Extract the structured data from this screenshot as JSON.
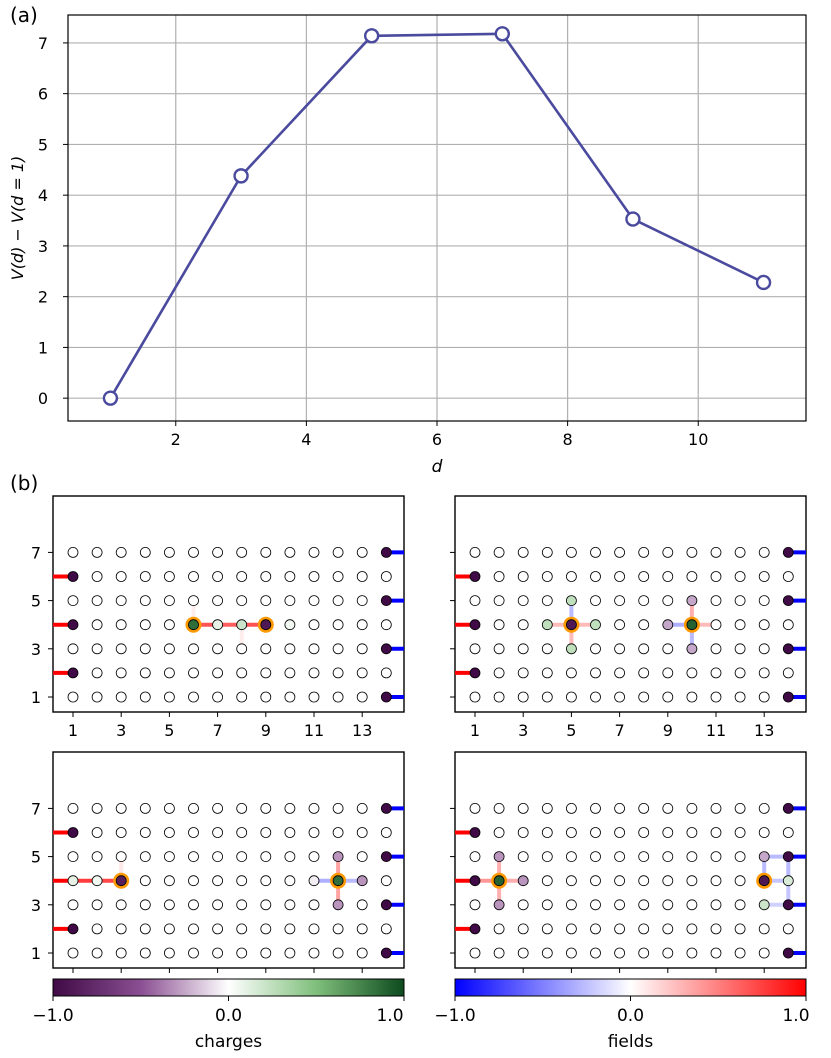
{
  "figure": {
    "panel_a_label": "(a)",
    "panel_b_label": "(b)"
  },
  "chart_data": [
    {
      "type": "line",
      "panel": "(a)",
      "xlabel": "d",
      "ylabel": "V(d) − V(d = 1)",
      "x": [
        1,
        3,
        5,
        7,
        9,
        11
      ],
      "series": [
        {
          "values": [
            0.0,
            4.38,
            7.14,
            7.18,
            3.53,
            2.28
          ],
          "color": "#4a4a9e",
          "marker": "open-circle"
        }
      ],
      "xlim": [
        0.35,
        11.65
      ],
      "ylim": [
        -0.45,
        7.55
      ],
      "xticks": [
        2,
        4,
        6,
        8,
        10
      ],
      "yticks": [
        0,
        1,
        2,
        3,
        4,
        5,
        6,
        7
      ],
      "grid": true
    },
    {
      "type": "heatmap",
      "panel": "(b)",
      "description_grid": "14 x 7 lattice, sites colored by charge, links colored by field",
      "xticks": [
        1,
        3,
        5,
        7,
        9,
        11,
        13
      ],
      "yticks": [
        1,
        3,
        5,
        7
      ],
      "boundary_fields": {
        "left": [
          {
            "y": 6,
            "field": 1.0
          },
          {
            "y": 4,
            "field": 1.0
          },
          {
            "y": 2,
            "field": 1.0
          }
        ],
        "right": [
          {
            "y": 7,
            "field": -1.0
          },
          {
            "y": 5,
            "field": -1.0
          },
          {
            "y": 3,
            "field": -1.0
          },
          {
            "y": 1,
            "field": -1.0
          }
        ]
      },
      "panels": [
        {
          "sites": [
            {
              "x": 6,
              "y": 4,
              "charge": 0.85,
              "probe": true
            },
            {
              "x": 7,
              "y": 4,
              "charge": 0.1
            },
            {
              "x": 8,
              "y": 4,
              "charge": 0.2
            },
            {
              "x": 9,
              "y": 4,
              "charge": -0.9,
              "probe": true
            },
            {
              "x": 10,
              "y": 4,
              "charge": 0.05
            }
          ],
          "links": [
            {
              "x1": 6,
              "y1": 4,
              "x2": 7,
              "y2": 4,
              "field": 0.75
            },
            {
              "x1": 7,
              "y1": 4,
              "x2": 8,
              "y2": 4,
              "field": 0.7
            },
            {
              "x1": 8,
              "y1": 4,
              "x2": 9,
              "y2": 4,
              "field": 0.75
            },
            {
              "x1": 6,
              "y1": 4,
              "x2": 6,
              "y2": 5,
              "field": 0.08
            },
            {
              "x1": 8,
              "y1": 4,
              "x2": 8,
              "y2": 3,
              "field": 0.08
            }
          ]
        },
        {
          "sites": [
            {
              "x": 5,
              "y": 4,
              "charge": -0.9,
              "probe": true
            },
            {
              "x": 4,
              "y": 4,
              "charge": 0.25
            },
            {
              "x": 6,
              "y": 4,
              "charge": 0.25
            },
            {
              "x": 5,
              "y": 5,
              "charge": 0.25
            },
            {
              "x": 5,
              "y": 3,
              "charge": 0.25
            },
            {
              "x": 10,
              "y": 4,
              "charge": 0.9,
              "probe": true
            },
            {
              "x": 9,
              "y": 4,
              "charge": -0.25
            },
            {
              "x": 11,
              "y": 4,
              "charge": 0.0
            },
            {
              "x": 10,
              "y": 5,
              "charge": -0.25
            },
            {
              "x": 10,
              "y": 3,
              "charge": -0.25
            }
          ],
          "links": [
            {
              "x1": 4,
              "y1": 4,
              "x2": 5,
              "y2": 4,
              "field": 0.3
            },
            {
              "x1": 5,
              "y1": 4,
              "x2": 6,
              "y2": 4,
              "field": 0.3
            },
            {
              "x1": 5,
              "y1": 4,
              "x2": 5,
              "y2": 5,
              "field": -0.3
            },
            {
              "x1": 5,
              "y1": 3,
              "x2": 5,
              "y2": 4,
              "field": 0.3
            },
            {
              "x1": 9,
              "y1": 4,
              "x2": 10,
              "y2": 4,
              "field": -0.35
            },
            {
              "x1": 10,
              "y1": 4,
              "x2": 11,
              "y2": 4,
              "field": 0.3
            },
            {
              "x1": 10,
              "y1": 4,
              "x2": 10,
              "y2": 5,
              "field": 0.35
            },
            {
              "x1": 10,
              "y1": 3,
              "x2": 10,
              "y2": 4,
              "field": -0.3
            }
          ]
        },
        {
          "sites": [
            {
              "x": 1,
              "y": 4,
              "charge": 0.1
            },
            {
              "x": 2,
              "y": 4,
              "charge": 0.05
            },
            {
              "x": 3,
              "y": 4,
              "charge": -0.85,
              "probe": true
            },
            {
              "x": 11,
              "y": 4,
              "charge": -0.05
            },
            {
              "x": 12,
              "y": 4,
              "charge": 0.85,
              "probe": true
            },
            {
              "x": 12,
              "y": 5,
              "charge": -0.3
            },
            {
              "x": 12,
              "y": 3,
              "charge": -0.3
            },
            {
              "x": 13,
              "y": 4,
              "charge": -0.3
            }
          ],
          "links": [
            {
              "x1": 1,
              "y1": 4,
              "x2": 2,
              "y2": 4,
              "field": 0.85
            },
            {
              "x1": 2,
              "y1": 4,
              "x2": 3,
              "y2": 4,
              "field": 0.8
            },
            {
              "x1": 3,
              "y1": 4,
              "x2": 3,
              "y2": 5,
              "field": 0.1
            },
            {
              "x1": 11,
              "y1": 4,
              "x2": 12,
              "y2": 4,
              "field": -0.35
            },
            {
              "x1": 12,
              "y1": 4,
              "x2": 13,
              "y2": 4,
              "field": -0.3
            },
            {
              "x1": 12,
              "y1": 4,
              "x2": 12,
              "y2": 5,
              "field": 0.4
            },
            {
              "x1": 12,
              "y1": 3,
              "x2": 12,
              "y2": 4,
              "field": 0.4
            }
          ]
        },
        {
          "sites": [
            {
              "x": 2,
              "y": 4,
              "charge": 0.9,
              "probe": true
            },
            {
              "x": 2,
              "y": 5,
              "charge": -0.3
            },
            {
              "x": 2,
              "y": 3,
              "charge": -0.3
            },
            {
              "x": 3,
              "y": 4,
              "charge": -0.3
            },
            {
              "x": 13,
              "y": 4,
              "charge": -0.9,
              "probe": true
            },
            {
              "x": 13,
              "y": 5,
              "charge": -0.25
            },
            {
              "x": 13,
              "y": 3,
              "charge": 0.2
            },
            {
              "x": 14,
              "y": 4,
              "charge": 0.15
            }
          ],
          "links": [
            {
              "x1": 1,
              "y1": 4,
              "x2": 2,
              "y2": 4,
              "field": 0.45
            },
            {
              "x1": 2,
              "y1": 4,
              "x2": 3,
              "y2": 4,
              "field": 0.35
            },
            {
              "x1": 2,
              "y1": 4,
              "x2": 2,
              "y2": 5,
              "field": 0.35
            },
            {
              "x1": 2,
              "y1": 3,
              "x2": 2,
              "y2": 4,
              "field": 0.35
            },
            {
              "x1": 13,
              "y1": 4,
              "x2": 14,
              "y2": 4,
              "field": -0.25
            },
            {
              "x1": 13,
              "y1": 4,
              "x2": 13,
              "y2": 5,
              "field": -0.3
            },
            {
              "x1": 13,
              "y1": 5,
              "x2": 14,
              "y2": 5,
              "field": -0.3
            },
            {
              "x1": 14,
              "y1": 4,
              "x2": 14,
              "y2": 5,
              "field": -0.3
            },
            {
              "x1": 13,
              "y1": 3,
              "x2": 14,
              "y2": 3,
              "field": -0.2
            },
            {
              "x1": 14,
              "y1": 3,
              "x2": 14,
              "y2": 4,
              "field": -0.25
            }
          ]
        }
      ]
    }
  ],
  "colorbars": [
    {
      "label": "charges",
      "min": -1.0,
      "mid": 0.0,
      "max": 1.0,
      "ticks": [
        "−1.0",
        "0.0",
        "1.0"
      ],
      "colors": [
        "#3f0a45",
        "#ffffff",
        "#0d4a1e"
      ]
    },
    {
      "label": "fields",
      "min": -1.0,
      "mid": 0.0,
      "max": 1.0,
      "ticks": [
        "−1.0",
        "0.0",
        "1.0"
      ],
      "colors": [
        "#0000ff",
        "#ffffff",
        "#ff0000"
      ]
    }
  ]
}
